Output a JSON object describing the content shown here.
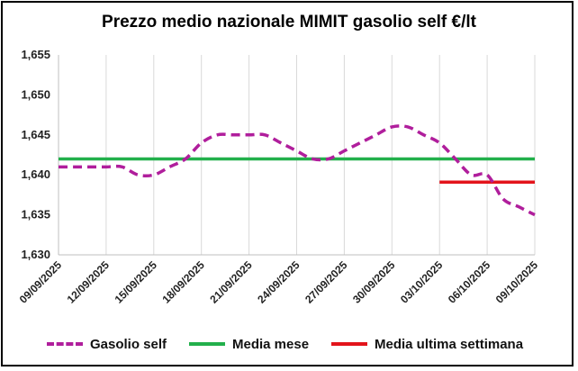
{
  "chart_data": {
    "type": "line",
    "title": "Prezzo medio nazionale MIMIT gasolio self €/lt",
    "xlabel": "",
    "ylabel": "",
    "ylim": [
      1.63,
      1.655
    ],
    "y_ticks": [
      "1,630",
      "1,635",
      "1,640",
      "1,645",
      "1,650",
      "1,655"
    ],
    "x_ticks": [
      "09/09/2025",
      "12/09/2025",
      "15/09/2025",
      "18/09/2025",
      "21/09/2025",
      "24/09/2025",
      "27/09/2025",
      "30/09/2025",
      "03/10/2025",
      "06/10/2025",
      "09/10/2025"
    ],
    "x": [
      "09/09/2025",
      "10/09/2025",
      "11/09/2025",
      "12/09/2025",
      "13/09/2025",
      "14/09/2025",
      "15/09/2025",
      "16/09/2025",
      "17/09/2025",
      "18/09/2025",
      "19/09/2025",
      "20/09/2025",
      "21/09/2025",
      "22/09/2025",
      "23/09/2025",
      "24/09/2025",
      "25/09/2025",
      "26/09/2025",
      "27/09/2025",
      "28/09/2025",
      "29/09/2025",
      "30/09/2025",
      "01/10/2025",
      "02/10/2025",
      "03/10/2025",
      "04/10/2025",
      "05/10/2025",
      "06/10/2025",
      "07/10/2025",
      "08/10/2025",
      "09/10/2025"
    ],
    "grid": "vertical",
    "legend_position": "bottom",
    "series": [
      {
        "name": "Gasolio self",
        "style": "dashed",
        "color": "#b01e9c",
        "values": [
          1.641,
          1.641,
          1.641,
          1.641,
          1.641,
          1.64,
          1.64,
          1.641,
          1.642,
          1.644,
          1.645,
          1.645,
          1.645,
          1.645,
          1.644,
          1.643,
          1.642,
          1.642,
          1.643,
          1.644,
          1.645,
          1.646,
          1.646,
          1.645,
          1.644,
          1.642,
          1.64,
          1.64,
          1.637,
          1.636,
          1.635
        ]
      },
      {
        "name": "Media mese",
        "style": "solid",
        "color": "#22b04b",
        "value": 1.642,
        "x_range": [
          "09/09/2025",
          "09/10/2025"
        ]
      },
      {
        "name": "Media ultima settimana",
        "style": "solid",
        "color": "#e3141b",
        "value": 1.6391,
        "x_range": [
          "03/10/2025",
          "09/10/2025"
        ]
      }
    ]
  }
}
